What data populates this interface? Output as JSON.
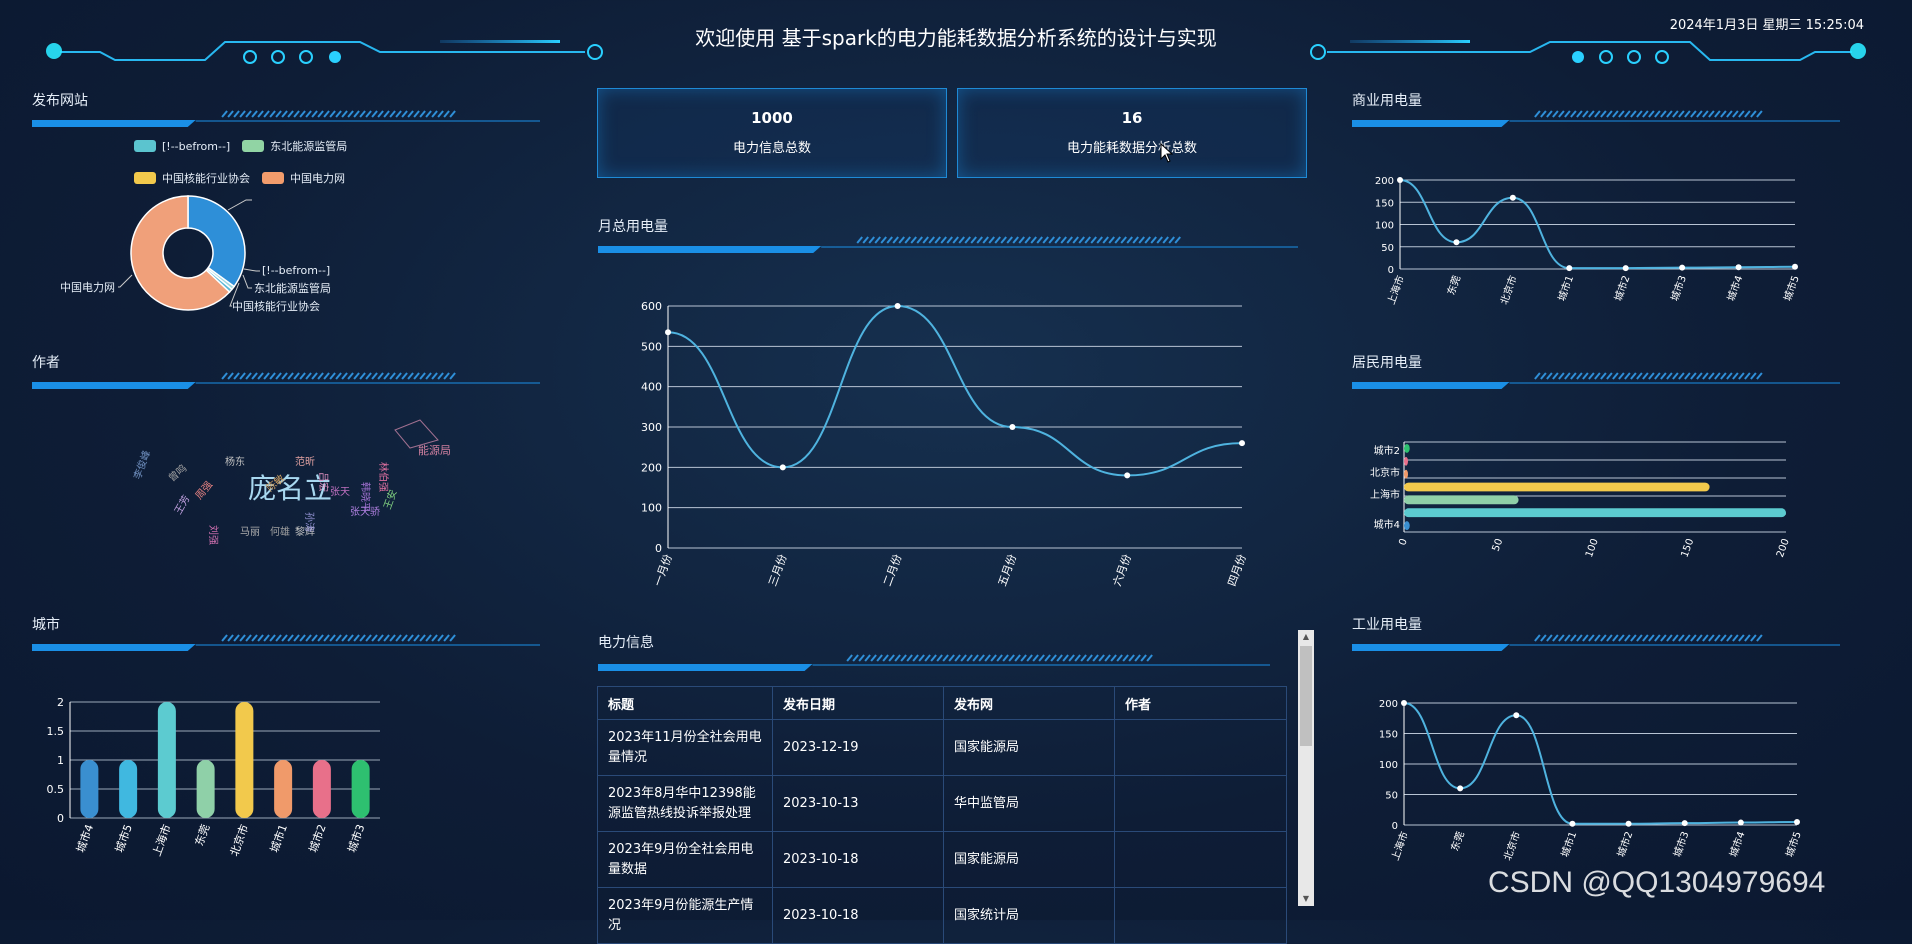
{
  "header": {
    "title": "欢迎使用 基于spark的电力能耗数据分析系统的设计与实现",
    "datetime": "2024年1月3日 星期三 15:25:04"
  },
  "panels": {
    "site": "发布网站",
    "author": "作者",
    "city": "城市",
    "monthly": "月总用电量",
    "info": "电力信息",
    "commercial": "商业用电量",
    "residential": "居民用电量",
    "industrial": "工业用电量"
  },
  "stats": [
    {
      "value": "1000",
      "label": "电力信息总数"
    },
    {
      "value": "16",
      "label": "电力能耗数据分析总数"
    }
  ],
  "pie_legend": [
    {
      "name": "[!--befrom--]",
      "color": "#5bc4cf"
    },
    {
      "name": "东北能源监管局",
      "color": "#91d4a4"
    },
    {
      "name": "中国核能行业协会",
      "color": "#f2c94c"
    },
    {
      "name": "中国电力网",
      "color": "#f29c6c"
    }
  ],
  "pie_labels": [
    "[!--befrom--]",
    "东北能源监管局",
    "中国核能行业协会",
    "中国电力网"
  ],
  "wordcloud": [
    {
      "t": "庞名立",
      "c": "#a8d8f0"
    },
    {
      "t": "能源局",
      "c": "#d080a0"
    },
    {
      "t": "张天",
      "c": "#c070c0"
    },
    {
      "t": "林伯强",
      "c": "#e070a0"
    },
    {
      "t": "王安",
      "c": "#80d080"
    },
    {
      "t": "韩晓平",
      "c": "#a070d0"
    },
    {
      "t": "张天骄",
      "c": "#b080e0"
    },
    {
      "t": "陈敏",
      "c": "#d0a060"
    },
    {
      "t": "曾鸣",
      "c": "#a0a0a0"
    },
    {
      "t": "李俊峰",
      "c": "#7090c0"
    },
    {
      "t": "杨东",
      "c": "#c0c0c0"
    },
    {
      "t": "周强",
      "c": "#e08080"
    },
    {
      "t": "马丽",
      "c": "#b0b0b0"
    },
    {
      "t": "何雄",
      "c": "#a0a0a0"
    },
    {
      "t": "黎辉",
      "c": "#c0c0c0"
    },
    {
      "t": "吕宏",
      "c": "#e090c0"
    },
    {
      "t": "刘强",
      "c": "#d070b0"
    },
    {
      "t": "孙涛",
      "c": "#9090d0"
    },
    {
      "t": "王芳",
      "c": "#c0a0e0"
    },
    {
      "t": "范昕",
      "c": "#e0a0a0"
    }
  ],
  "table": {
    "headers": [
      "标题",
      "发布日期",
      "发布网",
      "作者"
    ],
    "rows": [
      [
        "2023年11月份全社会用电量情况",
        "2023-12-19",
        "国家能源局",
        ""
      ],
      [
        "2023年8月华中12398能源监管热线投诉举报处理",
        "2023-10-13",
        "华中监管局",
        ""
      ],
      [
        "2023年9月份全社会用电量数据",
        "2023-10-18",
        "国家能源局",
        ""
      ],
      [
        "2023年9月份能源生产情况",
        "2023-10-18",
        "国家统计局",
        ""
      ]
    ]
  },
  "watermark": "CSDN @QQ1304979694",
  "chart_data": [
    {
      "id": "site-pie",
      "type": "pie",
      "donut": true,
      "categories": [
        "[!--befrom--]",
        "东北能源监管局",
        "中国核能行业协会",
        "中国电力网"
      ],
      "values": [
        35,
        1,
        1,
        63
      ],
      "colors": [
        "#2e8fd8",
        "#9fd8e0",
        "#5ab8d8",
        "#f0a07a"
      ]
    },
    {
      "id": "city-bar",
      "type": "bar",
      "categories": [
        "城市4",
        "城市5",
        "上海市",
        "东莞",
        "北京市",
        "城市1",
        "城市2",
        "城市3"
      ],
      "values": [
        1,
        1,
        2,
        1,
        2,
        1,
        1,
        1
      ],
      "colors": [
        "#3a8fd0",
        "#40b8e0",
        "#5ccbd0",
        "#8fd0a8",
        "#f2c94c",
        "#f09a6a",
        "#e8708a",
        "#2ec070"
      ],
      "ylim": [
        0,
        2
      ],
      "yticks": [
        "0",
        "0.5",
        "1",
        "1.5",
        "2"
      ]
    },
    {
      "id": "monthly-line",
      "type": "line",
      "categories": [
        "一月份",
        "三月份",
        "二月份",
        "五月份",
        "六月份",
        "四月份"
      ],
      "values": [
        535,
        200,
        600,
        300,
        180,
        260
      ],
      "ylim": [
        0,
        600
      ],
      "yticks": [
        "0",
        "100",
        "200",
        "300",
        "400",
        "500",
        "600"
      ]
    },
    {
      "id": "commercial-line",
      "type": "line",
      "categories": [
        "上海市",
        "东莞",
        "北京市",
        "城市1",
        "城市2",
        "城市3",
        "城市4",
        "城市5"
      ],
      "values": [
        200,
        60,
        160,
        2,
        2,
        3,
        4,
        5
      ],
      "ylim": [
        0,
        200
      ],
      "yticks": [
        "0",
        "50",
        "100",
        "150",
        "200"
      ]
    },
    {
      "id": "residential-bar",
      "type": "bar",
      "horizontal": true,
      "categories": [
        "城市4",
        "上海市",
        "北京市",
        "城市2"
      ],
      "rows": [
        {
          "value": 3,
          "color": "#3a8fd0"
        },
        {
          "value": 200,
          "color": "#5ccbd0"
        },
        {
          "value": 60,
          "color": "#8fd0a8"
        },
        {
          "value": 160,
          "color": "#f2c94c"
        },
        {
          "value": 1,
          "color": "#f09a6a"
        },
        {
          "value": 1,
          "color": "#e8708a"
        },
        {
          "value": 3,
          "color": "#2ec070"
        }
      ],
      "xlim": [
        0,
        200
      ],
      "xticks": [
        "0",
        "50",
        "100",
        "150",
        "200"
      ]
    },
    {
      "id": "industrial-line",
      "type": "line",
      "categories": [
        "上海市",
        "东莞",
        "北京市",
        "城市1",
        "城市2",
        "城市3",
        "城市4",
        "城市5"
      ],
      "values": [
        200,
        60,
        180,
        2,
        2,
        3,
        4,
        5
      ],
      "ylim": [
        0,
        200
      ],
      "yticks": [
        "0",
        "50",
        "100",
        "150",
        "200"
      ]
    }
  ]
}
